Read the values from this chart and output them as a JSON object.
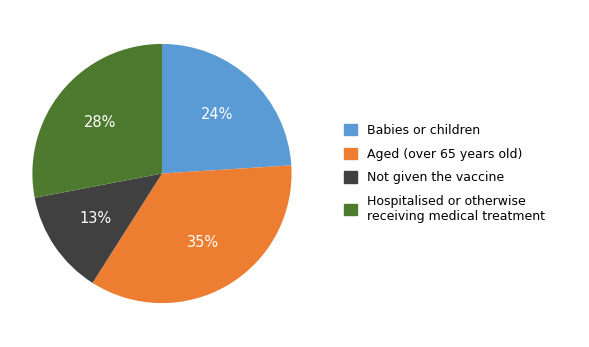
{
  "values": [
    24,
    35,
    13,
    28
  ],
  "colors": [
    "#5B9BD5",
    "#ED7D31",
    "#404040",
    "#4E7A2F"
  ],
  "pct_labels": [
    "24%",
    "35%",
    "13%",
    "28%"
  ],
  "legend_labels": [
    "Babies or children",
    "Aged (over 65 years old)",
    "Not given the vaccine",
    "Hospitalised or otherwise\nreceiving medical treatment"
  ],
  "startangle": 90,
  "background_color": "#ffffff",
  "text_color": "#ffffff",
  "fontsize": 10.5
}
